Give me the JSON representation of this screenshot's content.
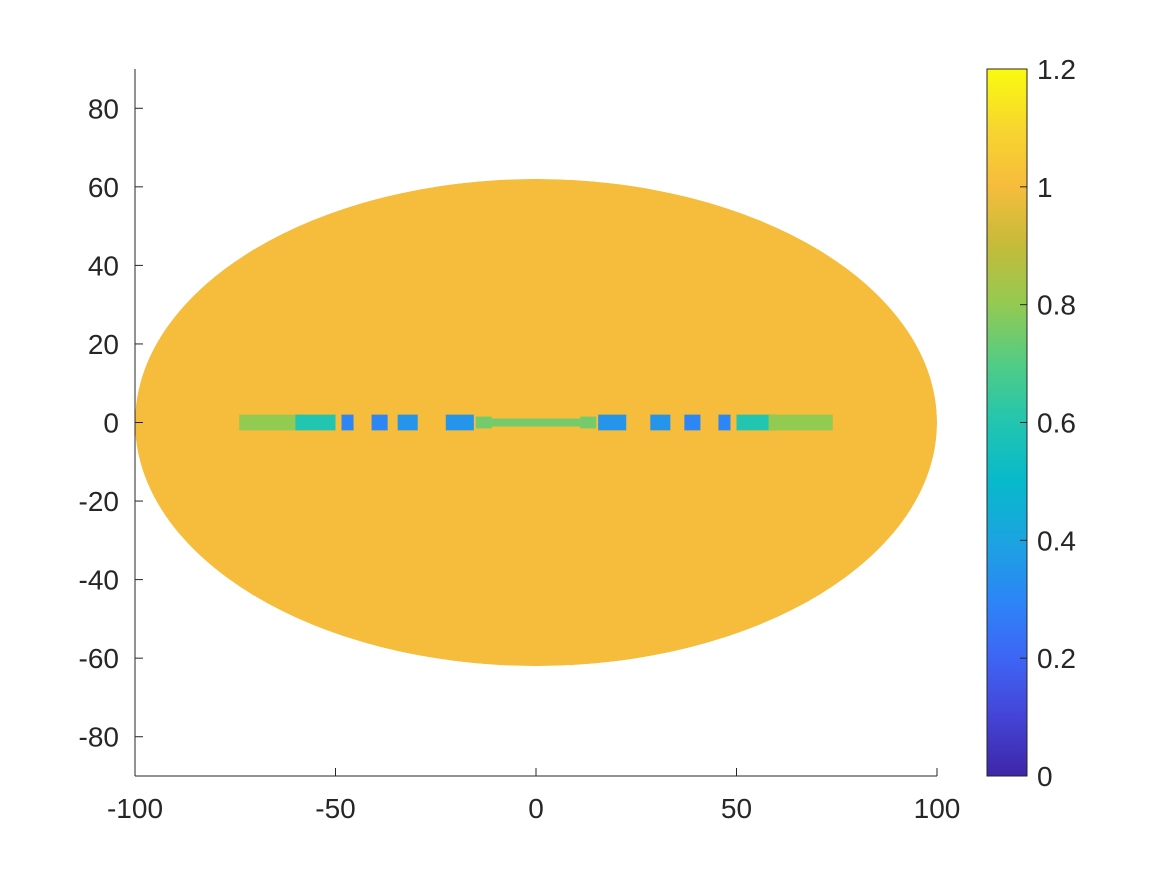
{
  "chart_data": {
    "type": "heatmap",
    "title": "",
    "xlabel": "",
    "ylabel": "",
    "xlim": [
      -100,
      100
    ],
    "ylim": [
      -90,
      90
    ],
    "x_ticks": [
      -100,
      -50,
      0,
      50,
      100
    ],
    "y_ticks": [
      80,
      60,
      40,
      20,
      0,
      -20,
      -40,
      -60,
      -80
    ],
    "grid": false,
    "colormap": "parula",
    "background_value": 1.0,
    "domain_ellipse": {
      "center": [
        0,
        0
      ],
      "semi_axis_x": 100,
      "semi_axis_y": 62
    },
    "features": [
      {
        "x": -66,
        "y": 0,
        "width": 16,
        "height": 4,
        "value": 0.8
      },
      {
        "x": -55,
        "y": 0,
        "width": 10,
        "height": 4,
        "value": 0.6
      },
      {
        "x": -47,
        "y": 0,
        "width": 3,
        "height": 4,
        "value": 0.3
      },
      {
        "x": -39,
        "y": 0,
        "width": 4,
        "height": 4,
        "value": 0.3
      },
      {
        "x": -32,
        "y": 0,
        "width": 5,
        "height": 4,
        "value": 0.35
      },
      {
        "x": -19,
        "y": 0,
        "width": 7,
        "height": 4,
        "value": 0.35
      },
      {
        "x": -13,
        "y": 0,
        "width": 4,
        "height": 3,
        "value": 0.75
      },
      {
        "x": 0,
        "y": 0,
        "width": 22,
        "height": 2,
        "value": 0.75
      },
      {
        "x": 13,
        "y": 0,
        "width": 4,
        "height": 3,
        "value": 0.75
      },
      {
        "x": 19,
        "y": 0,
        "width": 7,
        "height": 4,
        "value": 0.35
      },
      {
        "x": 31,
        "y": 0,
        "width": 5,
        "height": 4,
        "value": 0.35
      },
      {
        "x": 39,
        "y": 0,
        "width": 4,
        "height": 4,
        "value": 0.3
      },
      {
        "x": 47,
        "y": 0,
        "width": 3,
        "height": 4,
        "value": 0.3
      },
      {
        "x": 55,
        "y": 0,
        "width": 10,
        "height": 4,
        "value": 0.6
      },
      {
        "x": 66,
        "y": 0,
        "width": 16,
        "height": 4,
        "value": 0.8
      }
    ],
    "colorbar": {
      "range": [
        0,
        1.2
      ],
      "ticks": [
        0,
        0.2,
        0.4,
        0.6,
        0.8,
        1,
        1.2
      ],
      "tick_labels": [
        "0",
        "0.2",
        "0.4",
        "0.6",
        "0.8",
        "1",
        "1.2"
      ]
    }
  }
}
